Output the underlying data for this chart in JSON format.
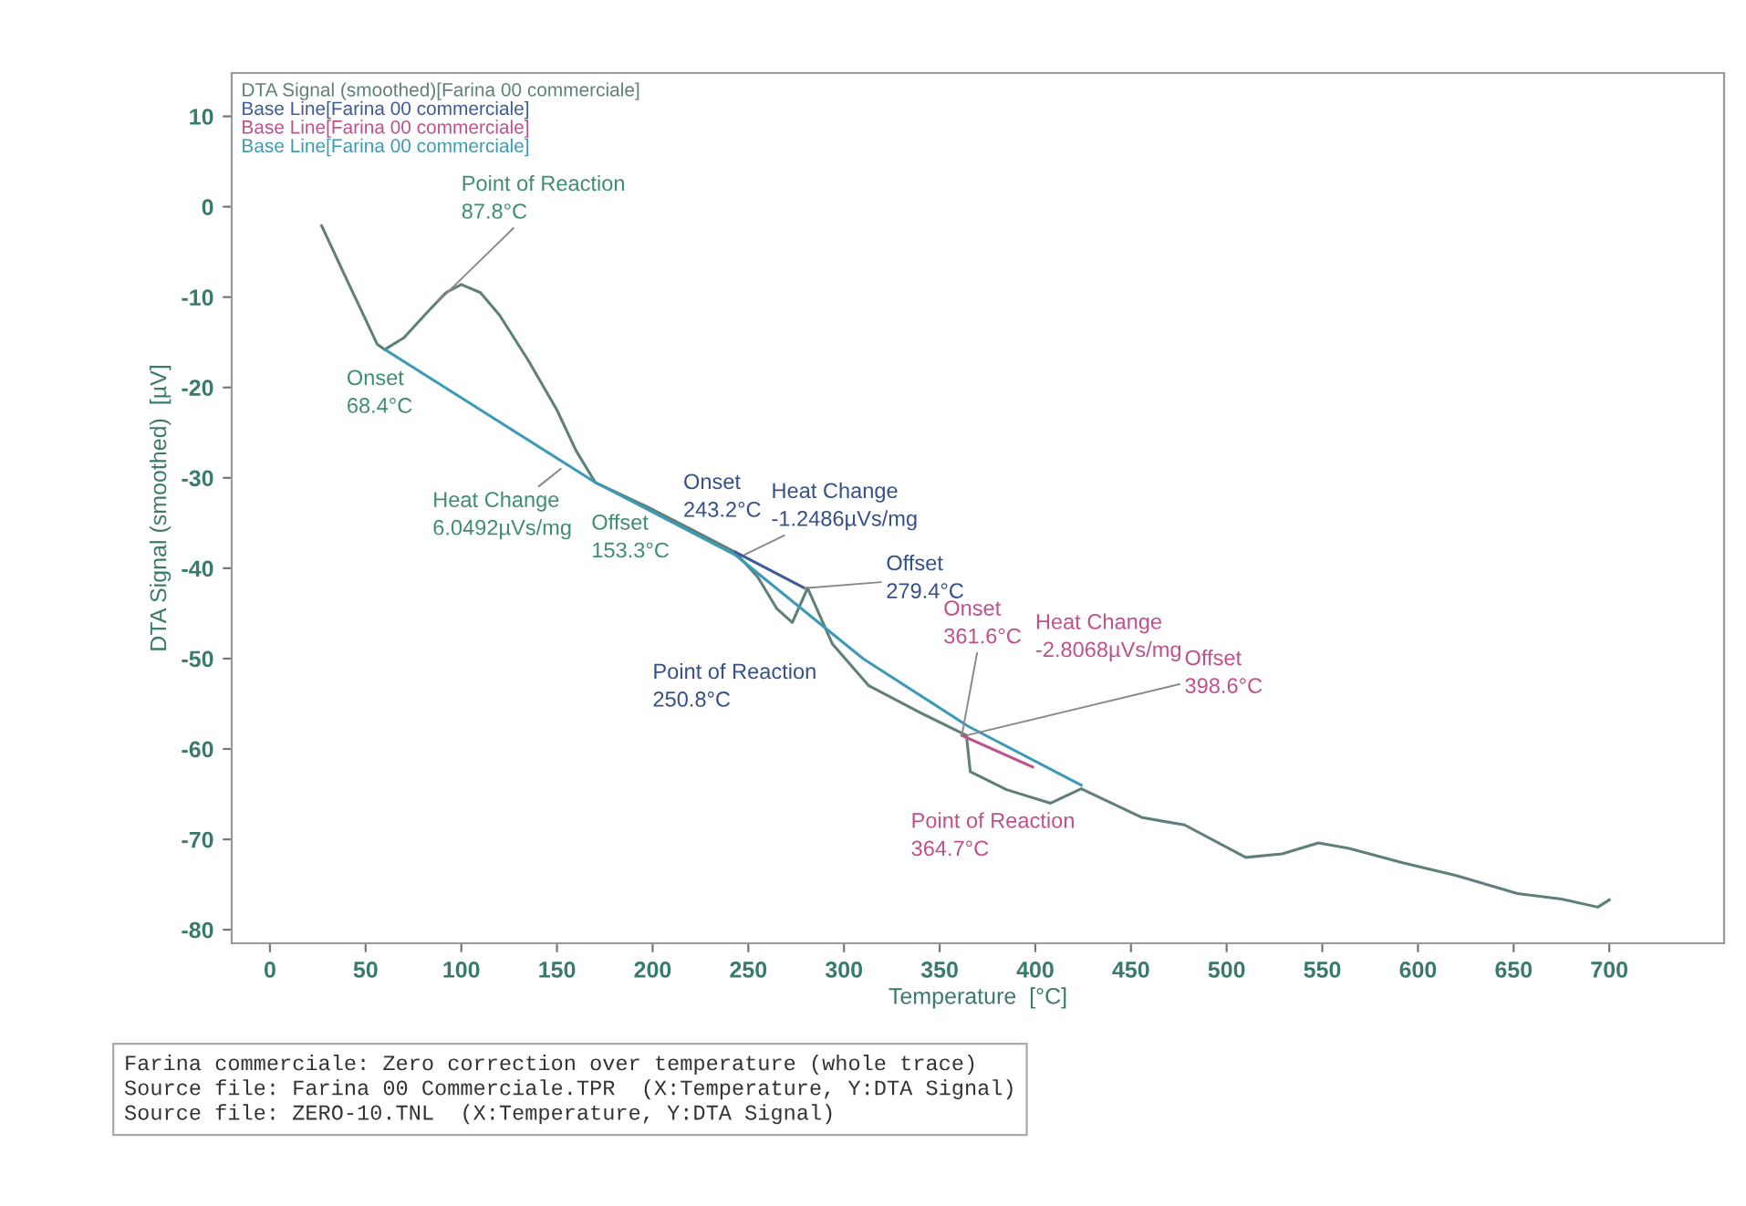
{
  "chart_data": {
    "type": "line",
    "xlabel": "Temperature  [°C]",
    "ylabel": "DTA Signal (smoothed)  [µV]",
    "xlim": [
      -20,
      760
    ],
    "xticks": [
      0,
      50,
      100,
      150,
      200,
      250,
      300,
      350,
      400,
      450,
      500,
      550,
      600,
      650,
      700
    ],
    "ylim": [
      -81.5,
      14.8
    ],
    "yticks": [
      -80,
      -70,
      -60,
      -50,
      -40,
      -30,
      -20,
      -10,
      0,
      10
    ],
    "grid": false,
    "legend": "top left",
    "marker": "none",
    "line_style": "solid",
    "series": [
      {
        "name": "DTA Signal (smoothed)[Farina 00 commerciale]",
        "color": "#5f7f7a",
        "x": [
          27,
          40,
          50,
          56,
          60,
          70,
          83,
          92,
          100,
          110,
          120,
          135,
          150,
          160,
          170,
          200,
          243,
          255,
          265,
          273,
          281,
          294,
          313,
          340,
          364,
          366,
          385,
          408,
          424,
          456,
          478,
          510,
          529,
          548,
          564,
          592,
          620,
          652,
          675,
          694,
          700
        ],
        "values": [
          -2.1,
          -8,
          -12.5,
          -15.2,
          -15.8,
          -14.5,
          -11.5,
          -9.5,
          -8.6,
          -9.5,
          -12,
          -17,
          -22.5,
          -27,
          -30.5,
          -33.5,
          -38.2,
          -41,
          -44.5,
          -46,
          -42.2,
          -48.4,
          -53,
          -56,
          -58.5,
          -62.5,
          -64.5,
          -66,
          -64.4,
          -67.6,
          -68.4,
          -72,
          -71.6,
          -70.4,
          -71,
          -72.6,
          -74,
          -76,
          -76.6,
          -77.5,
          -76.7
        ]
      },
      {
        "name": "Base Line[Farina 00 commerciale]",
        "color": "#3d5a99",
        "x": [
          243.2,
          279.4
        ],
        "values": [
          -38.2,
          -42.2
        ]
      },
      {
        "name": "Base Line[Farina 00 commerciale]",
        "color": "#c0508a",
        "x": [
          361.6,
          398.6
        ],
        "values": [
          -58.5,
          -62
        ]
      },
      {
        "name": "Base Line[Farina 00 commerciale]",
        "color": "#3a9ab8",
        "x": [
          60,
          170,
          243,
          310,
          365,
          424
        ],
        "values": [
          -15.8,
          -30.5,
          -38.5,
          -50,
          -57.5,
          -64
        ]
      }
    ],
    "annotations": [
      {
        "text": "Point of Reaction\n87.8°C",
        "x": 87.8,
        "y": -10.5
      },
      {
        "text": "Onset\n68.4°C",
        "x": 68.4,
        "y": -16
      },
      {
        "text": "Heat Change\n6.0492µVs/mg",
        "x": 152,
        "y": -29
      },
      {
        "text": "Offset\n153.3°C",
        "x": 170,
        "y": -30.5
      },
      {
        "text": "Onset\n243.2°C",
        "x": 243.2,
        "y": -38.2
      },
      {
        "text": "Heat Change\n-1.2486µVs/mg",
        "x": 248,
        "y": -38.5
      },
      {
        "text": "Offset\n279.4°C",
        "x": 279.4,
        "y": -42.2
      },
      {
        "text": "Point of Reaction\n250.8°C",
        "x": 268,
        "y": -45.5
      },
      {
        "text": "Onset\n361.6°C",
        "x": 361.6,
        "y": -58.5
      },
      "Heat Change\n-2.8068µVs/mg",
      {
        "text": "Offset\n398.6°C",
        "x": 364,
        "y": -58.5
      },
      {
        "text": "Point of Reaction\n364.7°C",
        "x": 385,
        "y": -64.5
      },
      "Farina commerciale: Zero correction over temperature (whole trace)\nSource file: Farina 00 Commerciale.TPR  (X:Temperature, Y:DTA Signal)\nSource file: ZERO-10.TNL  (X:Temperature, Y:DTA Signal)"
    ]
  }
}
